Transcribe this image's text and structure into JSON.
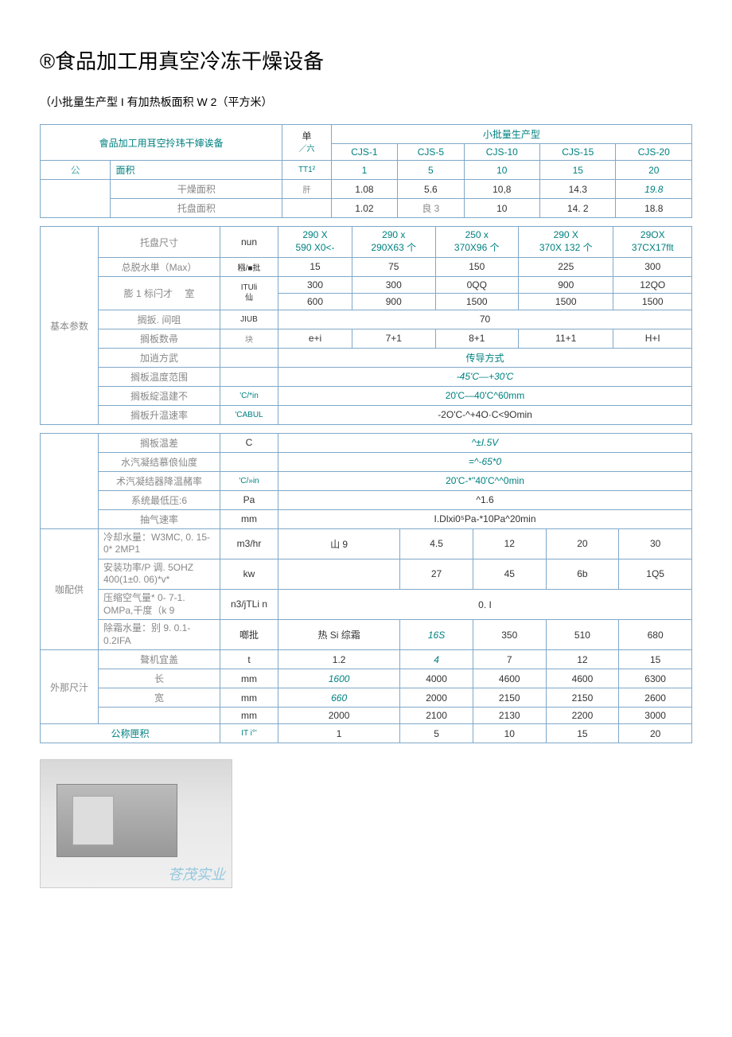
{
  "page": {
    "title": "®食品加工用真空冷冻干燥设备",
    "subtitle": "（小批量生产型 I 有加热板面积 W 2（平方米）"
  },
  "table1": {
    "heading_left": "會品加工用耳空拎玮干婶诶备",
    "unit_col": "单",
    "unit_col_sub": "／六",
    "group_header": "小批量生产型",
    "models": [
      "CJS-1",
      "CJS-5",
      "CJS-10",
      "CJS-15",
      "CJS-20"
    ],
    "gong": "公",
    "mianji": "面积",
    "unit_mianji": "TT1²",
    "mianji_vals": [
      "1",
      "5",
      "10",
      "15",
      "20"
    ],
    "ganzao_label": "干燥面积",
    "ganzao_unit": "肝",
    "ganzao_vals": [
      "1.08",
      "5.6",
      "10,8",
      "14.3",
      "19.8"
    ],
    "tuopan_label": "托盘面积",
    "tuopan_vals": [
      "1.02",
      "良 3",
      "10",
      "14. 2",
      "18.8"
    ]
  },
  "table2": {
    "tuopan_size": "托盘尺寸",
    "tuopan_unit": "nun",
    "tuopan_vals": [
      "290 X\n590 X0<-",
      "290 x\n290X63 个",
      "250 x\n370X96 个",
      "290 X\n370X 132 个",
      "29OX\n37CX17flt"
    ],
    "tuoshui": "总脱水単（Max）",
    "tuoshui_unit": "糨/■批",
    "tuoshui_vals": [
      "15",
      "75",
      "150",
      "225",
      "300"
    ],
    "peng_label": "膨 1 标闩才　 室",
    "peng_unit": "ITUli\n仙",
    "peng_r1": [
      "300",
      "300",
      "0QQ",
      "900",
      "12QO"
    ],
    "peng_r2": [
      "600",
      "900",
      "1500",
      "1500",
      "1500"
    ],
    "geban_jianju": "搁扳. 间咀",
    "geban_jianju_unit": "JIUB",
    "geban_jianju_val": "70",
    "geban_shu": "搁板数帚",
    "geban_shu_unit": "块",
    "geban_shu_vals": [
      "e+i",
      "7+1",
      "8+1",
      "11+1",
      "H+I"
    ],
    "jiadao": "加逍方武",
    "jiadao_val": "传导方式",
    "temp_range": "搁板温度范围",
    "temp_range_val": "-45'C—+30'C",
    "jiben": "基本参数",
    "geban_jiang": "搁板綻温建不",
    "geban_jiang_unit": "'C/*in",
    "geban_jiang_val": "20'C—40'C^60mm",
    "geban_sheng": "搁板升温速率",
    "geban_sheng_unit": "'CABUL",
    "geban_sheng_val": "-2O'C-^+4O·C<9Omin"
  },
  "table3": {
    "geban_wencha": "搁板温差",
    "wencha_unit": "C",
    "wencha_val": "^±I.5V",
    "shuiqi_zuidi": "水汽凝结慕俍仙度",
    "shuiqi_zuidi_val": "=^-65*0",
    "shuiqi_jiang": "术汽凝结器降温赭率",
    "shuiqi_jiang_unit": "'C/»in",
    "shuiqi_jiang_val": "20'C-*\"40'C^^0min",
    "zuidi_ya": "系统最低压:6",
    "zuidi_ya_unit": "Pa",
    "zuidi_ya_val": "^1.6",
    "chouqi": "抽气速率",
    "chouqi_unit": "mm",
    "chouqi_val": "I.Dlxi0⁵Pa-*10Pa^20min",
    "lengque": "冷却水量：W3MC, 0. 15-0* 2MP1",
    "lengque_unit": "m3/hr",
    "lengque_vals": [
      "山 9",
      "4.5",
      "12",
      "20",
      "30"
    ],
    "anzhuang": "安装功率/P 调. 5OHZ 400(1±0. 06)*v*",
    "anzhuang_unit": "kw",
    "anzhuang_vals": [
      "",
      "27",
      "45",
      "6b",
      "1Q5"
    ],
    "qupei": "咖配供",
    "yasuo": "压缩空气量* 0- 7-1. OMPa,干度（k 9",
    "yasuo_unit": "n3/jTLi n",
    "yasuo_val": "0. I",
    "chushuang": "除霜水量：别 9. 0.1-0.2IFA",
    "chushuang_unit": "啷批",
    "chushuang_vals": [
      "热 Si 综霜",
      "16S",
      "350",
      "510",
      "680"
    ],
    "zhengji": "聱机宜盖",
    "zhengji_unit": "t",
    "zhengji_vals": [
      "1.2",
      "4",
      "7",
      "12",
      "15"
    ],
    "chang": "长",
    "chang_unit": "mm",
    "chang_vals": [
      "1600",
      "4000",
      "4600",
      "4600",
      "6300"
    ],
    "waixing": "外那尺汁",
    "kuan": "宽",
    "kuan_unit": "mm",
    "kuan_vals": [
      "660",
      "2000",
      "2150",
      "2150",
      "2600"
    ],
    "gao_unit": "mm",
    "gao_vals": [
      "2000",
      "2100",
      "2130",
      "2200",
      "3000"
    ],
    "gongcheng": "公称匣积",
    "gongcheng_unit": "IT i°'",
    "gongcheng_vals": [
      "1",
      "5",
      "10",
      "15",
      "20"
    ]
  },
  "watermark": "苍茂实业"
}
